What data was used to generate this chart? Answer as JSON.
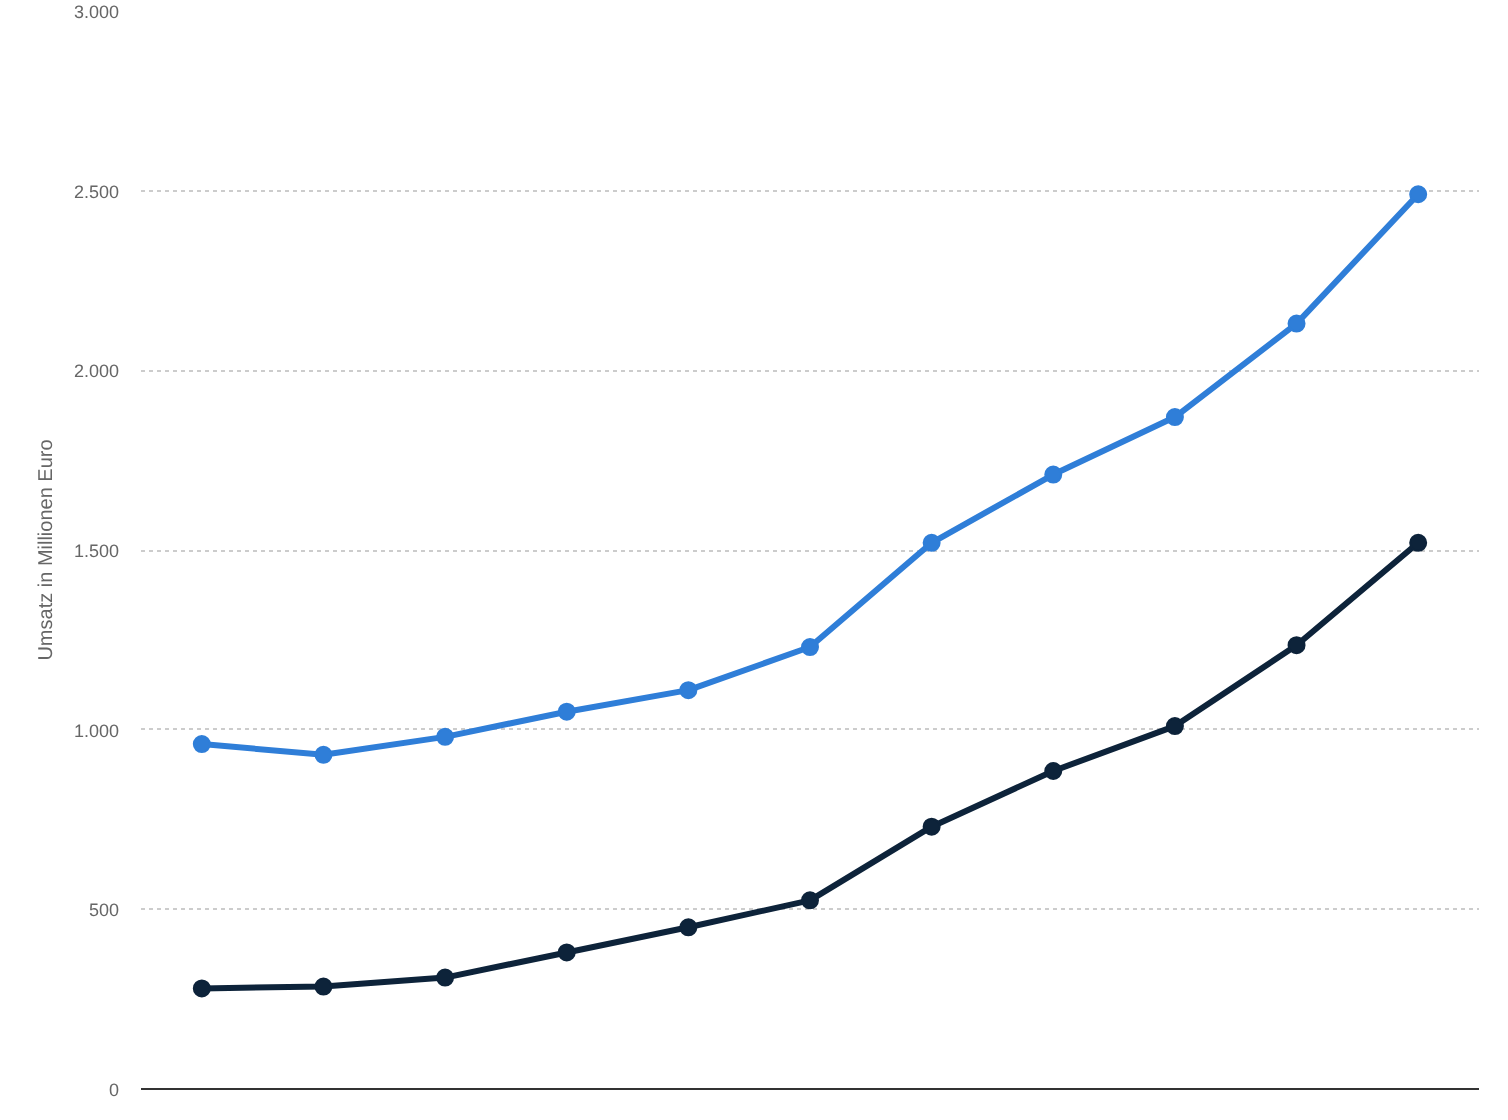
{
  "chart_data": {
    "type": "line",
    "ylabel": "Umsatz in Millionen Euro",
    "categories": [
      null,
      null,
      null,
      null,
      null,
      null,
      null,
      null,
      null,
      null,
      null
    ],
    "series": [
      {
        "color": "#2f7ed8",
        "values": [
          960,
          930,
          980,
          1050,
          1110,
          1230,
          1520,
          1710,
          1870,
          2130,
          2490
        ]
      },
      {
        "color": "#0d233a",
        "values": [
          280,
          285,
          310,
          380,
          450,
          525,
          730,
          885,
          1010,
          1235,
          1520
        ]
      }
    ],
    "ylim": [
      0,
      3000
    ],
    "yticks": [
      0,
      500,
      {
        "value": 1000,
        "label": "1.000"
      },
      {
        "value": 1500,
        "label": "1.500"
      },
      {
        "value": 2000,
        "label": "2.000"
      },
      {
        "value": 2500,
        "label": "2.500"
      },
      {
        "value": 3000,
        "label": "3.000"
      }
    ],
    "grid": "y",
    "marker": "circle",
    "line_style": "solid"
  }
}
